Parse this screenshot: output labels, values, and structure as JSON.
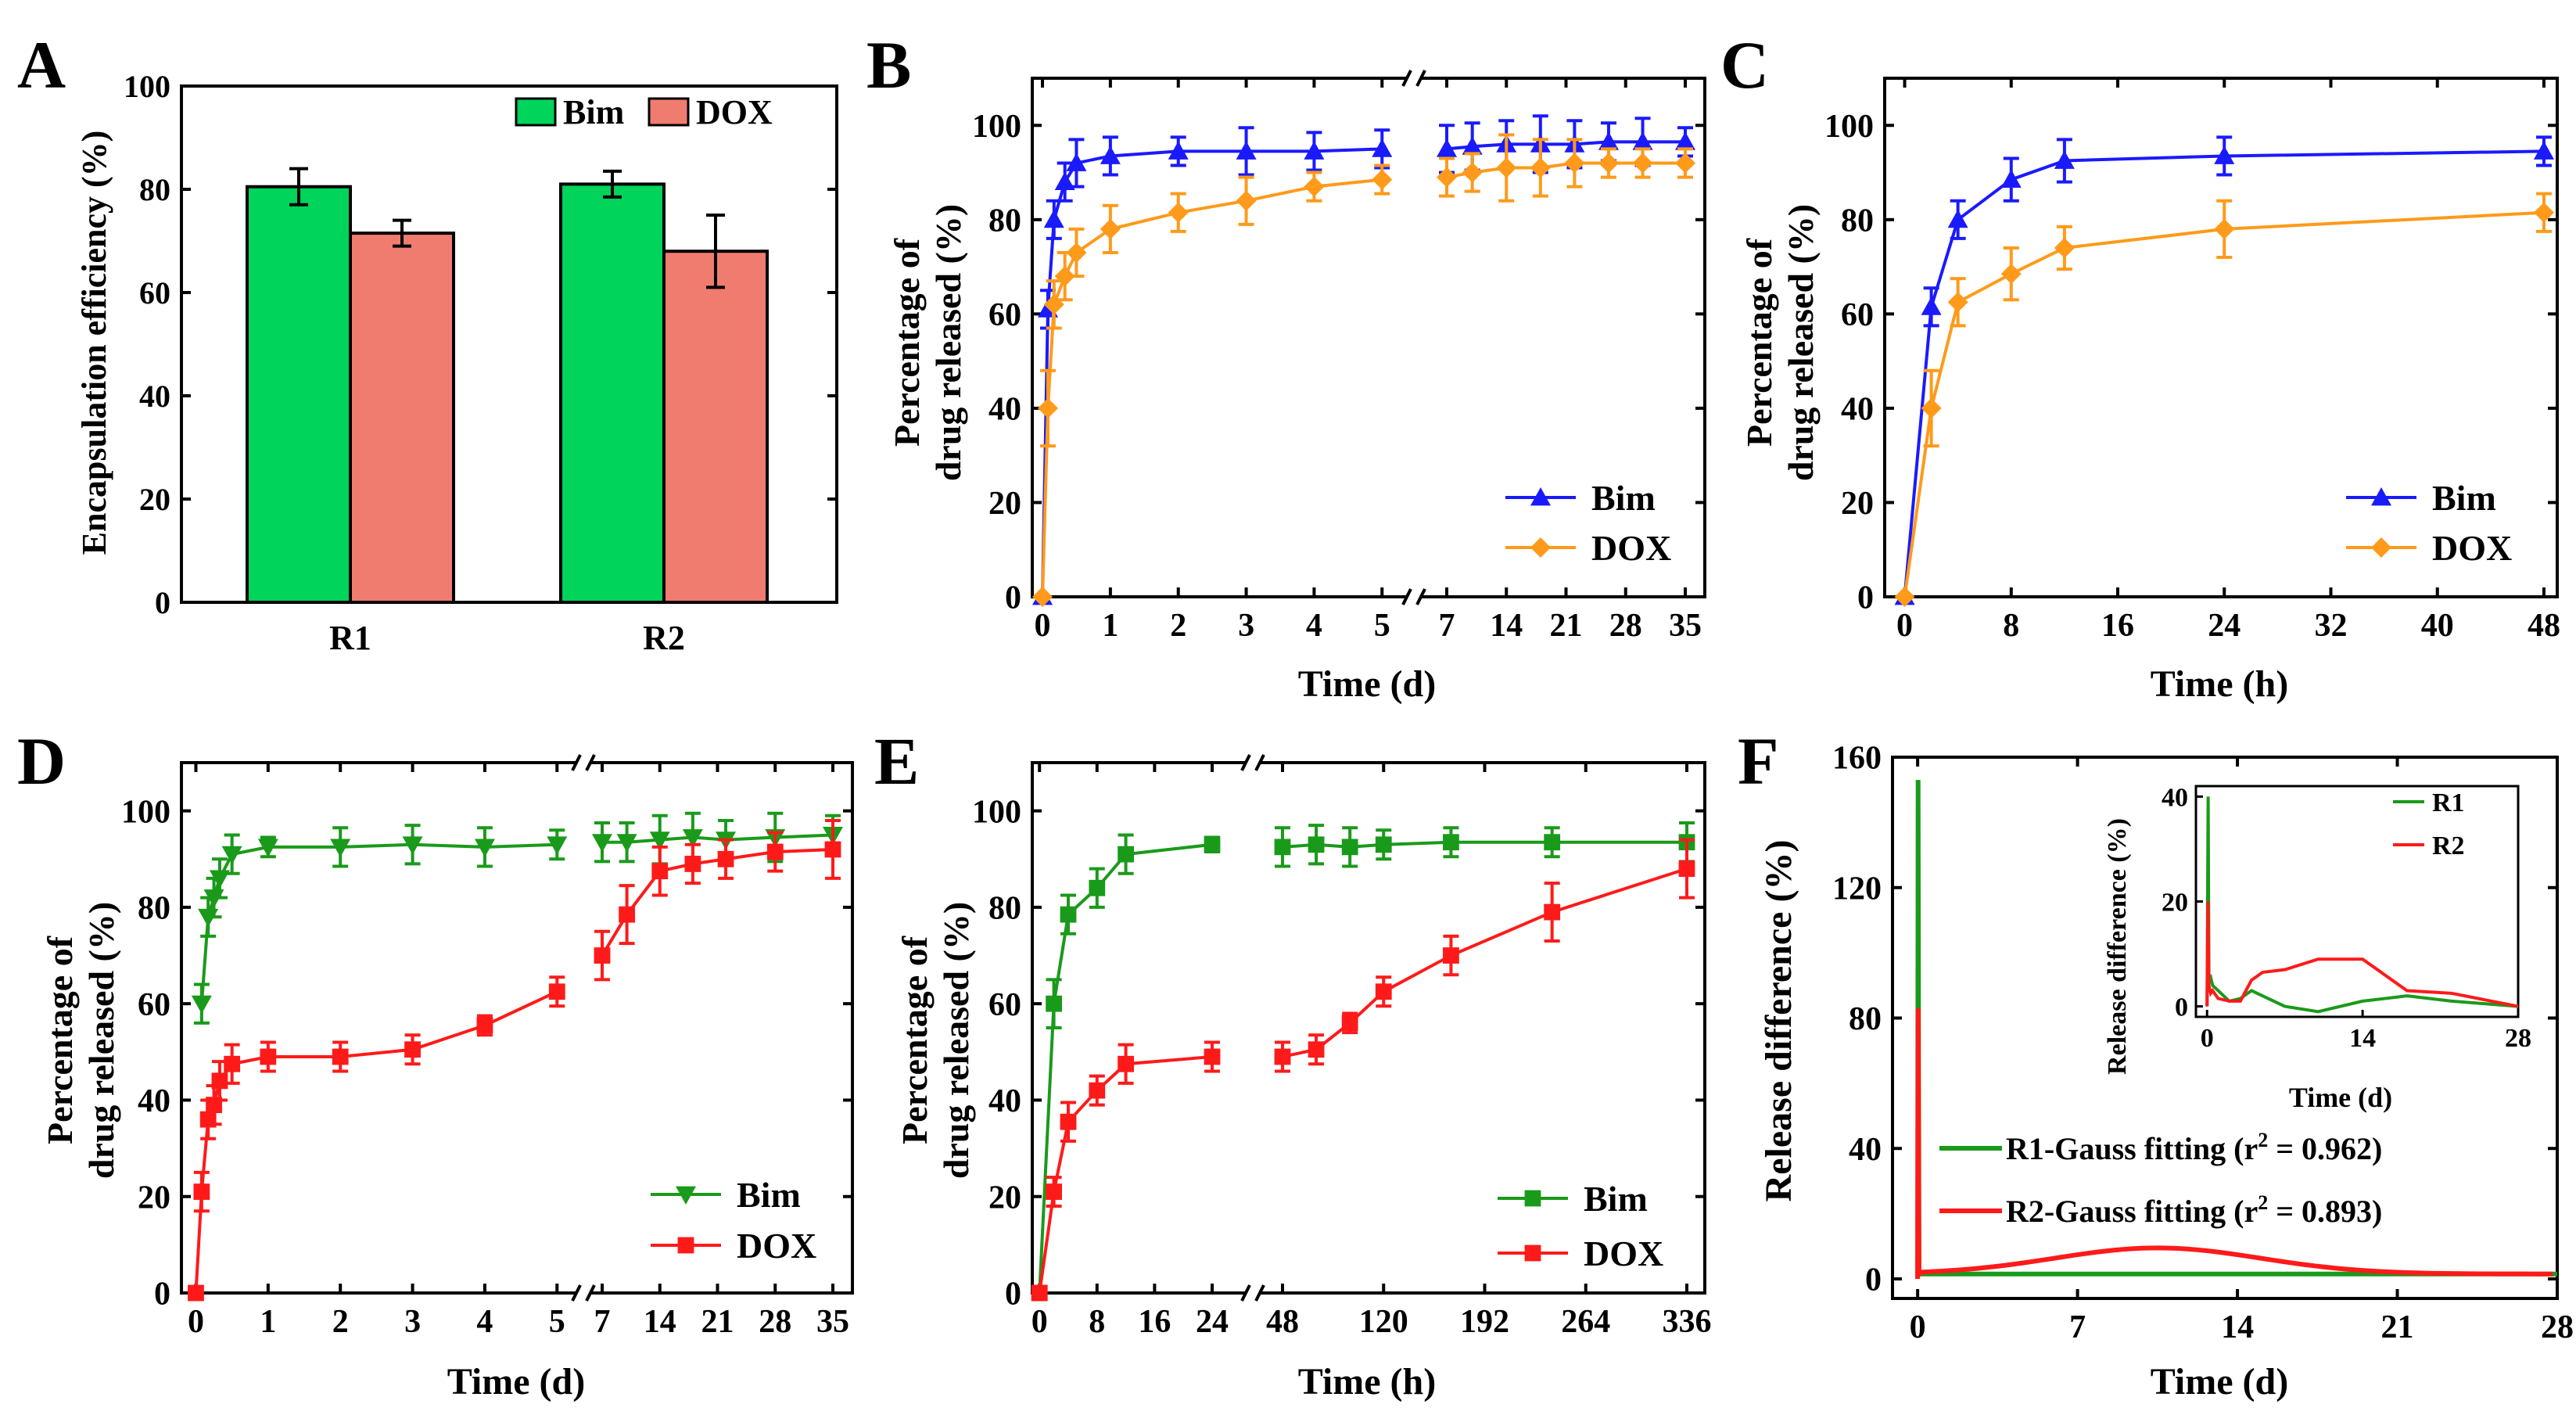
{
  "colors": {
    "bim_green_bar": "#00d45a",
    "dox_salmon_bar": "#f07c70",
    "bim_blue": "#1a1aff",
    "dox_orange": "#ff9a1a",
    "bim_dark_green": "#1a9a1a",
    "dox_red": "#ff1a1a",
    "r1_green": "#1a9a1a",
    "r2_red": "#ff1a1a"
  },
  "chart_data": [
    {
      "id": "A",
      "panel_label": "A",
      "type": "bar",
      "title": "",
      "xlabel": "",
      "ylabel": "Encapsulation efficiency (%)",
      "categories": [
        "R1",
        "R2"
      ],
      "series": [
        {
          "name": "Bim",
          "values": [
            80.5,
            81.0
          ],
          "errors": [
            3.5,
            2.5
          ]
        },
        {
          "name": "DOX",
          "values": [
            71.5,
            68.0
          ],
          "errors": [
            2.5,
            7.0
          ]
        }
      ],
      "ylim": [
        0,
        100
      ],
      "yticks": [
        "0",
        "20",
        "40",
        "60",
        "80",
        "100"
      ],
      "legend": [
        "Bim",
        "DOX"
      ],
      "legend_position": "top-right"
    },
    {
      "id": "B",
      "panel_label": "B",
      "type": "line",
      "xlabel": "Time (d)",
      "ylabel_line1": "Percentage of",
      "ylabel_line2": "drug released (%)",
      "ylim": [
        0,
        110
      ],
      "yticks": [
        "0",
        "20",
        "40",
        "60",
        "80",
        "100"
      ],
      "xticks": [
        "0",
        "1",
        "2",
        "3",
        "4",
        "5",
        "7",
        "14",
        "21",
        "28",
        "35"
      ],
      "broken_x_axis": true,
      "series": [
        {
          "name": "Bim",
          "marker": "triangle-up",
          "segment1": {
            "x": [
              0,
              0.08,
              0.17,
              0.33,
              0.5,
              1,
              2,
              3,
              4,
              5
            ],
            "y": [
              0,
              61,
              80,
              88,
              92,
              93.5,
              94.5,
              94.5,
              94.5,
              95
            ],
            "err": [
              0,
              4,
              4,
              4,
              5,
              4,
              3,
              5,
              4,
              4
            ]
          },
          "segment2": {
            "x": [
              7,
              10,
              14,
              18,
              22,
              26,
              30,
              35
            ],
            "y": [
              95,
              95.5,
              96,
              96,
              96,
              96.5,
              96.5,
              96.5
            ],
            "err": [
              5,
              5,
              5,
              6,
              5,
              4,
              5,
              3
            ]
          }
        },
        {
          "name": "DOX",
          "marker": "diamond",
          "segment1": {
            "x": [
              0,
              0.08,
              0.17,
              0.33,
              0.5,
              1,
              2,
              3,
              4,
              5
            ],
            "y": [
              0,
              40,
              62,
              68,
              73,
              78,
              81.5,
              84,
              87,
              88.5
            ],
            "err": [
              0,
              8,
              5,
              5,
              5,
              5,
              4,
              5,
              3,
              3
            ]
          },
          "segment2": {
            "x": [
              7,
              10,
              14,
              18,
              22,
              26,
              30,
              35
            ],
            "y": [
              89,
              90,
              91,
              91,
              92,
              92,
              92,
              92
            ],
            "err": [
              4,
              4,
              7,
              6,
              5,
              3,
              3,
              3
            ]
          }
        }
      ],
      "legend": [
        "Bim",
        "DOX"
      ],
      "legend_position": "bottom-right"
    },
    {
      "id": "C",
      "panel_label": "C",
      "type": "line",
      "xlabel": "Time (h)",
      "ylabel_line1": "Percentage of",
      "ylabel_line2": "drug released (%)",
      "xlim": [
        -1.5,
        49
      ],
      "ylim": [
        0,
        110
      ],
      "yticks": [
        "0",
        "20",
        "40",
        "60",
        "80",
        "100"
      ],
      "xticks": [
        "0",
        "8",
        "16",
        "24",
        "32",
        "40",
        "48"
      ],
      "series": [
        {
          "name": "Bim",
          "marker": "triangle-up",
          "x": [
            0,
            2,
            4,
            8,
            12,
            24,
            48
          ],
          "y": [
            0,
            61.5,
            80,
            88.5,
            92.5,
            93.5,
            94.5
          ],
          "err": [
            0,
            4,
            4,
            4.5,
            4.5,
            4,
            3
          ]
        },
        {
          "name": "DOX",
          "marker": "diamond",
          "x": [
            0,
            2,
            4,
            8,
            12,
            24,
            48
          ],
          "y": [
            0,
            40,
            62.5,
            68.5,
            74,
            78,
            81.5
          ],
          "err": [
            0,
            8,
            5,
            5.5,
            4.5,
            6,
            4
          ]
        }
      ],
      "legend": [
        "Bim",
        "DOX"
      ],
      "legend_position": "bottom-right"
    },
    {
      "id": "D",
      "panel_label": "D",
      "type": "line",
      "xlabel": "Time (d)",
      "ylabel_line1": "Percentage of",
      "ylabel_line2": "drug released (%)",
      "ylim": [
        0,
        110
      ],
      "yticks": [
        "0",
        "20",
        "40",
        "60",
        "80",
        "100"
      ],
      "xticks": [
        "0",
        "1",
        "2",
        "3",
        "4",
        "5",
        "7",
        "14",
        "21",
        "28",
        "35"
      ],
      "broken_x_axis": true,
      "series": [
        {
          "name": "Bim",
          "marker": "triangle-down",
          "segment1": {
            "x": [
              0.08,
              0.17,
              0.25,
              0.33,
              0.5,
              1,
              2,
              3,
              4,
              5
            ],
            "y": [
              60,
              78,
              82,
              86,
              91,
              92.5,
              92.5,
              93,
              92.5,
              93
            ],
            "err": [
              4,
              4,
              4,
              4,
              4,
              2,
              4,
              4,
              4,
              3
            ]
          },
          "segment2": {
            "x": [
              7,
              10,
              14,
              18,
              22,
              28,
              35
            ],
            "y": [
              93.5,
              93.5,
              94,
              94.5,
              94,
              94.5,
              95
            ],
            "err": [
              4,
              4,
              5,
              5,
              4,
              5,
              4
            ]
          }
        },
        {
          "name": "DOX",
          "marker": "square",
          "segment1": {
            "x": [
              0,
              0.08,
              0.17,
              0.25,
              0.33,
              0.5,
              1,
              2,
              3,
              4,
              5
            ],
            "y": [
              0,
              21,
              36,
              39,
              44,
              47.5,
              49,
              49,
              50.5,
              55.5,
              62.5
            ],
            "err": [
              0,
              4,
              4,
              4,
              4,
              4,
              3,
              3,
              3,
              2,
              3
            ]
          },
          "segment2": {
            "x": [
              7,
              10,
              14,
              18,
              22,
              28,
              35
            ],
            "y": [
              70,
              78.5,
              87.5,
              89,
              90,
              91.5,
              92
            ],
            "err": [
              5,
              6,
              5,
              4,
              4,
              4,
              6
            ]
          }
        }
      ],
      "legend": [
        "Bim",
        "DOX"
      ],
      "legend_position": "bottom-right"
    },
    {
      "id": "E",
      "panel_label": "E",
      "type": "line",
      "xlabel": "Time (h)",
      "ylabel_line1": "Percentage of",
      "ylabel_line2": "drug released (%)",
      "ylim": [
        0,
        110
      ],
      "yticks": [
        "0",
        "20",
        "40",
        "60",
        "80",
        "100"
      ],
      "xticks": [
        "0",
        "8",
        "16",
        "24",
        "48",
        "120",
        "192",
        "264",
        "336"
      ],
      "broken_x_axis": true,
      "series": [
        {
          "name": "Bim",
          "marker": "square",
          "segment1": {
            "x": [
              0,
              2,
              4,
              8,
              12,
              24
            ],
            "y": [
              0,
              60,
              78.5,
              84,
              91,
              93
            ],
            "err": [
              0,
              5,
              4,
              4,
              4,
              1.5
            ]
          },
          "segment2": {
            "x": [
              48,
              72,
              96,
              120,
              168,
              240,
              336
            ],
            "y": [
              92.5,
              93,
              92.5,
              93,
              93.5,
              93.5,
              93.5
            ],
            "err": [
              4,
              4,
              4,
              3,
              3,
              3,
              4
            ]
          }
        },
        {
          "name": "DOX",
          "marker": "square",
          "segment1": {
            "x": [
              0,
              2,
              4,
              8,
              12,
              24
            ],
            "y": [
              0,
              21,
              35.5,
              42,
              47.5,
              49
            ],
            "err": [
              0,
              3,
              4,
              3,
              4,
              3
            ]
          },
          "segment2": {
            "x": [
              48,
              72,
              96,
              120,
              168,
              240,
              336
            ],
            "y": [
              49,
              50.5,
              56,
              62.5,
              70,
              79,
              88
            ],
            "err": [
              3,
              3,
              2,
              3,
              4,
              6,
              6
            ]
          }
        }
      ],
      "legend": [
        "Bim",
        "DOX"
      ],
      "legend_position": "bottom-right"
    },
    {
      "id": "F",
      "panel_label": "F",
      "type": "line",
      "xlabel": "Time (d)",
      "ylabel": "Release difference (%)",
      "xlim": [
        -1.1,
        28
      ],
      "ylim": [
        -6,
        160
      ],
      "yticks": [
        "0",
        "40",
        "80",
        "120",
        "160"
      ],
      "xticks": [
        "0",
        "7",
        "14",
        "21",
        "28"
      ],
      "series": [
        {
          "name": "R1-Gauss fitting",
          "fit_label": "R1-Gauss fitting (r",
          "r2": "0.962",
          "spike_peak": 153,
          "baseline": 1.5
        },
        {
          "name": "R2-Gauss fitting",
          "fit_label": "R2-Gauss fitting (r",
          "r2": "0.893",
          "spike_peak": 83,
          "gauss_center": 10.5,
          "gauss_amp": 8,
          "gauss_sigma": 4.5,
          "baseline": 1.5
        }
      ],
      "legend_position": "bottom-center",
      "inset": {
        "xlabel": "Time (d)",
        "ylabel": "Release difference (%)",
        "xlim": [
          -1,
          28
        ],
        "ylim": [
          -2,
          42
        ],
        "yticks": [
          "0",
          "20",
          "40"
        ],
        "xticks": [
          "0",
          "14",
          "28"
        ],
        "series": [
          {
            "name": "R1",
            "x": [
              0,
              0.1,
              0.17,
              0.33,
              0.5,
              1,
              2,
              3,
              4,
              5,
              7,
              10,
              14,
              18,
              22,
              28
            ],
            "y": [
              0,
              40,
              5,
              5.5,
              4,
              3,
              1,
              1.5,
              3,
              2,
              0,
              -1,
              1,
              2,
              1,
              0
            ]
          },
          {
            "name": "R2",
            "x": [
              0,
              0.08,
              0.17,
              0.33,
              0.5,
              1,
              2,
              3,
              4,
              5,
              7,
              10,
              14,
              18,
              22,
              28
            ],
            "y": [
              0,
              20,
              4,
              2.5,
              3,
              1.5,
              1,
              1,
              5,
              6.5,
              7,
              9,
              9,
              3,
              2.5,
              0
            ]
          }
        ],
        "legend": [
          "R1",
          "R2"
        ],
        "legend_position": "top-right"
      }
    }
  ]
}
